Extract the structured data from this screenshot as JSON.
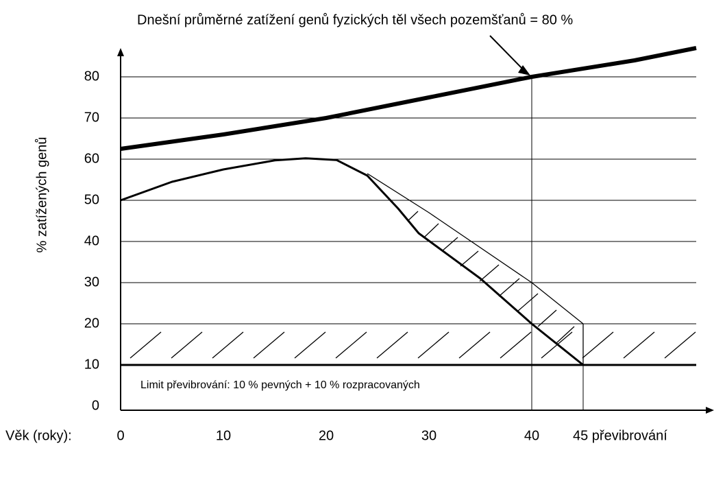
{
  "chart_data": {
    "type": "line",
    "title": "Dnešní průměrné zatížení genů fyzických těl všech pozemšťanů = 80 %",
    "x_label": "Věk (roky):",
    "y_label": "% zatížených genů",
    "annotation": "Limit převibrování: 10 % pevných + 10 % rozpracovaných",
    "xlim": [
      0,
      56
    ],
    "ylim": [
      0,
      87
    ],
    "xticks": [
      0,
      10,
      20,
      30,
      40,
      {
        "value": 45,
        "label": "45 převibrování"
      }
    ],
    "yticks": [
      0,
      10,
      20,
      30,
      40,
      50,
      60,
      70,
      80
    ],
    "grid": true,
    "limit": 10,
    "series": [
      {
        "color": "#000000",
        "width": 6,
        "x": [
          0,
          10,
          20,
          30,
          40,
          50,
          56
        ],
        "values": [
          62.5,
          66,
          70,
          75,
          80,
          84,
          87
        ]
      },
      {
        "color": "#000000",
        "width": 3,
        "x": [
          0,
          5,
          10,
          15,
          18,
          21,
          24,
          27,
          29,
          35,
          40,
          45
        ],
        "values": [
          50,
          54.5,
          57.5,
          59.7,
          60.2,
          59.8,
          56,
          48,
          42,
          31,
          20,
          10
        ]
      },
      {
        "color": "#000000",
        "width": 1.3,
        "x": [
          24,
          30,
          40,
          43,
          45,
          45
        ],
        "values": [
          56.5,
          47,
          30,
          24,
          20,
          10
        ]
      }
    ]
  }
}
